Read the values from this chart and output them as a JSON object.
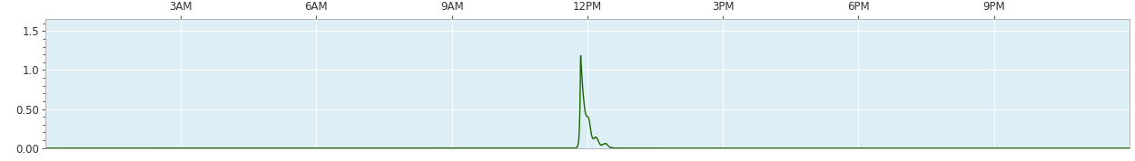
{
  "x_ticks_labels": [
    "3AM",
    "6AM",
    "9AM",
    "12PM",
    "3PM",
    "6PM",
    "9PM"
  ],
  "x_ticks_hours": [
    3,
    6,
    9,
    12,
    15,
    18,
    21
  ],
  "x_min": 0,
  "x_max": 24,
  "y_min": 0.0,
  "y_max": 1.65,
  "y_ticks": [
    0.0,
    0.5,
    1.0,
    1.5
  ],
  "y_tick_labels": [
    "0.00",
    "0.50",
    "1.0",
    "1.5"
  ],
  "line_color": "#1a6600",
  "bg_color": "#ddeef6",
  "grid_color": "#ffffff",
  "outer_bg": "#ffffff",
  "peak_time": 11.85,
  "peak_value": 1.22,
  "figsize": [
    12.5,
    1.78
  ],
  "dpi": 100,
  "label_fontsize": 8.5
}
